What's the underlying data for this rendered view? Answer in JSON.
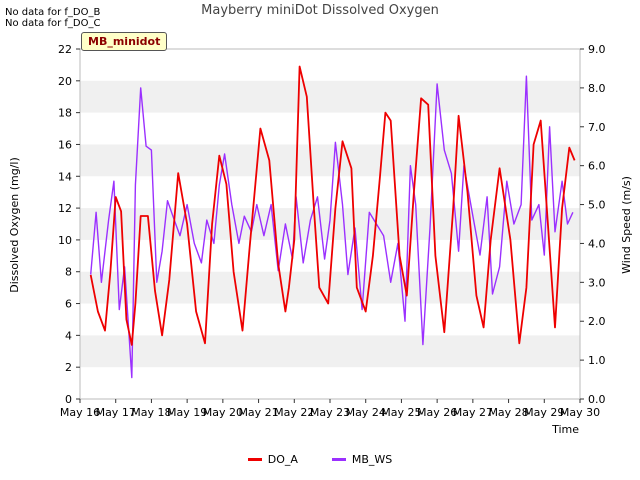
{
  "notes": [
    "No data for f_DO_B",
    "No data for f_DO_C"
  ],
  "chart_data": {
    "type": "line",
    "title": "Mayberry miniDot Dissolved Oxygen",
    "tag": "MB_minidot",
    "xlabel": "Time",
    "ylabel_left": "Dissolved Oxygen (mg/l)",
    "ylabel_right": "Wind Speed (m/s)",
    "xlim": [
      16,
      30
    ],
    "ylim_left": [
      0,
      22
    ],
    "ylim_right": [
      0,
      9
    ],
    "x_tick_labels": [
      "May 16",
      "May 17",
      "May 18",
      "May 19",
      "May 20",
      "May 21",
      "May 22",
      "May 23",
      "May 24",
      "May 25",
      "May 26",
      "May 27",
      "May 28",
      "May 29",
      "May 30"
    ],
    "y_ticks_left": [
      "0",
      "2",
      "4",
      "6",
      "8",
      "10",
      "12",
      "14",
      "16",
      "18",
      "20",
      "22"
    ],
    "y_ticks_right": [
      "0.0",
      "1.0",
      "2.0",
      "3.0",
      "4.0",
      "5.0",
      "6.0",
      "7.0",
      "8.0",
      "9.0"
    ],
    "grid": "horizontal bands",
    "legend_position": "bottom-center",
    "series": [
      {
        "name": "DO_A",
        "color": "#ee0000",
        "axis": "left",
        "x": [
          16.3,
          16.5,
          16.7,
          16.85,
          17.0,
          17.15,
          17.3,
          17.45,
          17.55,
          17.7,
          17.9,
          18.1,
          18.3,
          18.5,
          18.75,
          19.0,
          19.25,
          19.5,
          19.7,
          19.9,
          20.1,
          20.3,
          20.55,
          20.75,
          21.05,
          21.3,
          21.55,
          21.75,
          21.85,
          22.0,
          22.15,
          22.35,
          22.55,
          22.7,
          22.95,
          23.15,
          23.35,
          23.6,
          23.75,
          24.0,
          24.2,
          24.4,
          24.55,
          24.7,
          24.95,
          25.15,
          25.35,
          25.55,
          25.75,
          25.95,
          26.2,
          26.45,
          26.6,
          26.85,
          27.1,
          27.3,
          27.5,
          27.75,
          28.05,
          28.3,
          28.5,
          28.7,
          28.9,
          29.1,
          29.3,
          29.5,
          29.7,
          29.85
        ],
        "y": [
          7.8,
          5.5,
          4.3,
          8.0,
          12.7,
          11.8,
          5.0,
          3.4,
          6.0,
          11.5,
          11.5,
          6.8,
          4.0,
          7.5,
          14.2,
          11.0,
          5.5,
          3.5,
          11.0,
          15.3,
          13.5,
          8.0,
          4.3,
          9.5,
          17.0,
          15.0,
          8.5,
          5.5,
          7.0,
          10.0,
          20.9,
          19.0,
          12.0,
          7.0,
          6.0,
          12.0,
          16.2,
          14.5,
          7.0,
          5.5,
          9.0,
          14.0,
          18.0,
          17.5,
          9.0,
          6.5,
          13.0,
          18.9,
          18.5,
          9.0,
          4.2,
          12.0,
          17.8,
          13.0,
          6.5,
          4.5,
          10.0,
          14.5,
          10.0,
          3.5,
          7.0,
          16.0,
          17.5,
          11.0,
          4.5,
          12.0,
          15.8,
          15.0
        ]
      },
      {
        "name": "MB_WS",
        "color": "#9b30ff",
        "axis": "right",
        "x": [
          16.3,
          16.45,
          16.6,
          16.8,
          16.95,
          17.1,
          17.25,
          17.45,
          17.55,
          17.7,
          17.85,
          18.0,
          18.15,
          18.3,
          18.45,
          18.6,
          18.8,
          19.0,
          19.2,
          19.4,
          19.55,
          19.75,
          19.9,
          20.05,
          20.25,
          20.45,
          20.6,
          20.8,
          20.95,
          21.15,
          21.35,
          21.55,
          21.75,
          21.95,
          22.05,
          22.25,
          22.45,
          22.65,
          22.85,
          23.0,
          23.15,
          23.35,
          23.5,
          23.7,
          23.9,
          24.1,
          24.3,
          24.5,
          24.7,
          24.9,
          25.1,
          25.25,
          25.4,
          25.6,
          25.8,
          26.0,
          26.2,
          26.4,
          26.6,
          26.75,
          27.0,
          27.2,
          27.4,
          27.55,
          27.75,
          27.95,
          28.15,
          28.35,
          28.5,
          28.65,
          28.85,
          29.0,
          29.15,
          29.3,
          29.5,
          29.65,
          29.8
        ],
        "y": [
          3.2,
          4.8,
          3.0,
          4.6,
          5.6,
          2.3,
          3.4,
          0.55,
          5.5,
          8.0,
          6.5,
          6.4,
          3.0,
          3.8,
          5.1,
          4.7,
          4.2,
          5.0,
          4.0,
          3.5,
          4.6,
          4.0,
          5.5,
          6.3,
          5.0,
          4.0,
          4.7,
          4.3,
          5.0,
          4.2,
          5.0,
          3.3,
          4.5,
          3.6,
          5.2,
          3.5,
          4.6,
          5.2,
          3.6,
          4.6,
          6.6,
          5.0,
          3.2,
          4.4,
          2.3,
          4.8,
          4.5,
          4.2,
          3.0,
          4.0,
          2.0,
          6.0,
          5.0,
          1.4,
          4.4,
          8.1,
          6.4,
          5.8,
          3.8,
          6.0,
          4.7,
          3.7,
          5.2,
          2.7,
          3.4,
          5.6,
          4.5,
          5.0,
          8.3,
          4.6,
          5.0,
          3.7,
          7.0,
          4.3,
          5.6,
          4.5,
          4.8
        ]
      }
    ]
  }
}
